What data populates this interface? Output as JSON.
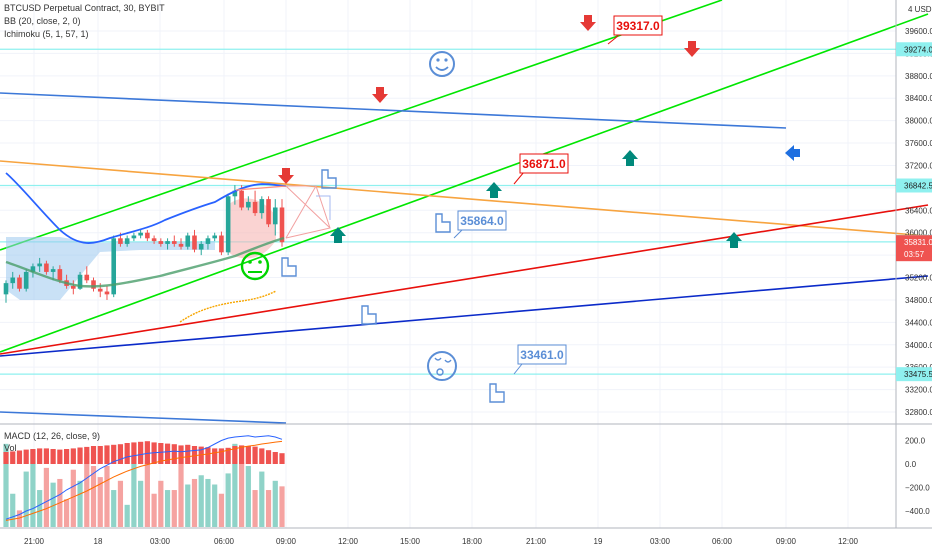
{
  "header": {
    "symbol": "BTCUSD Perpetual Contract, 30, BYBIT",
    "ind1": "BB (20, close, 2, 0)",
    "ind2": "Ichimoku (5, 1, 57, 1)"
  },
  "macd_header": {
    "label": "MACD (12, 26, close, 9)",
    "vol": "Vol"
  },
  "currency": "4 USD",
  "colors": {
    "up": "#26a69a",
    "down": "#ef5350",
    "green_line": "#00e600",
    "orange_line": "#f7a440",
    "red_line": "#e8100c",
    "blue_line": "#0b2ac9",
    "steel_line": "#3c78d8",
    "cyan_level": "#8ff0ef",
    "callout_red": "#e8100c",
    "callout_blue": "#5b8ed6"
  },
  "chart_data": {
    "type": "candlestick",
    "x_ticks": [
      "21:00",
      "18",
      "03:00",
      "06:00",
      "09:00",
      "12:00",
      "15:00",
      "18:00",
      "21:00",
      "19",
      "03:00",
      "06:00",
      "09:00",
      "12:00"
    ],
    "y_ticks": [
      32800,
      33200,
      33600,
      34000,
      34400,
      34800,
      35200,
      35600,
      36000,
      36400,
      36800,
      37200,
      37600,
      38000,
      38400,
      38800,
      39200,
      39600
    ],
    "macd_ticks": [
      200,
      0,
      -200,
      -400
    ],
    "macd_tick_labels": [
      "200.0",
      "0.0",
      "−200.0",
      "−400.0"
    ],
    "price_levels": [
      {
        "value": 39274.0,
        "label": "39274.0"
      },
      {
        "value": 36842.5,
        "label": "36842.5"
      },
      {
        "value": 35836.0,
        "label": "35836.0"
      },
      {
        "value": 33475.5,
        "label": "33475.5"
      }
    ],
    "current_price": {
      "value": 35831.0,
      "label": "35831.0",
      "countdown": "03:57"
    },
    "callouts": [
      {
        "label": "39317.0",
        "style": "red"
      },
      {
        "label": "36871.0",
        "style": "red"
      },
      {
        "label": "35864.0",
        "style": "blue"
      },
      {
        "label": "33461.0",
        "style": "blue"
      }
    ],
    "candles": [
      [
        34900,
        35150,
        34750,
        35100
      ],
      [
        35100,
        35300,
        35000,
        35200
      ],
      [
        35200,
        35250,
        34950,
        35000
      ],
      [
        35000,
        35350,
        34950,
        35300
      ],
      [
        35300,
        35450,
        35200,
        35400
      ],
      [
        35400,
        35550,
        35300,
        35450
      ],
      [
        35450,
        35500,
        35250,
        35300
      ],
      [
        35300,
        35400,
        35150,
        35350
      ],
      [
        35350,
        35420,
        35100,
        35150
      ],
      [
        35150,
        35250,
        35000,
        35050
      ],
      [
        35050,
        35150,
        34900,
        35000
      ],
      [
        35000,
        35300,
        34980,
        35250
      ],
      [
        35250,
        35400,
        35100,
        35150
      ],
      [
        35150,
        35200,
        34950,
        35000
      ],
      [
        35000,
        35100,
        34850,
        34950
      ],
      [
        34950,
        35050,
        34800,
        34900
      ],
      [
        34900,
        35950,
        34850,
        35900
      ],
      [
        35900,
        36000,
        35750,
        35800
      ],
      [
        35800,
        35950,
        35750,
        35900
      ],
      [
        35900,
        36000,
        35850,
        35950
      ],
      [
        35950,
        36050,
        35900,
        36000
      ],
      [
        36000,
        36050,
        35850,
        35900
      ],
      [
        35900,
        35950,
        35800,
        35850
      ],
      [
        35850,
        35900,
        35750,
        35800
      ],
      [
        35800,
        35900,
        35700,
        35850
      ],
      [
        35850,
        35950,
        35750,
        35800
      ],
      [
        35800,
        35900,
        35700,
        35750
      ],
      [
        35750,
        36000,
        35700,
        35950
      ],
      [
        35950,
        36050,
        35650,
        35700
      ],
      [
        35700,
        35850,
        35600,
        35800
      ],
      [
        35800,
        35950,
        35700,
        35900
      ],
      [
        35900,
        36000,
        35850,
        35950
      ],
      [
        35950,
        36020,
        35600,
        35650
      ],
      [
        35650,
        36700,
        35600,
        36650
      ],
      [
        36650,
        36850,
        36500,
        36750
      ],
      [
        36750,
        36850,
        36400,
        36450
      ],
      [
        36450,
        36650,
        36400,
        36550
      ],
      [
        36550,
        36750,
        36300,
        36350
      ],
      [
        36350,
        36650,
        36250,
        36600
      ],
      [
        36600,
        36650,
        36100,
        36150
      ],
      [
        36150,
        36600,
        35950,
        36450
      ],
      [
        36450,
        36600,
        35750,
        35830
      ]
    ],
    "volumes": [
      450,
      180,
      90,
      300,
      420,
      200,
      320,
      240,
      260,
      150,
      310,
      250,
      400,
      330,
      270,
      330,
      200,
      250,
      120,
      380,
      250,
      360,
      180,
      250,
      200,
      200,
      400,
      230,
      260,
      280,
      260,
      230,
      180,
      290,
      450,
      350,
      330,
      200,
      300,
      200,
      250,
      220
    ],
    "macd_hist": [
      40,
      42,
      45,
      48,
      50,
      52,
      52,
      50,
      48,
      50,
      52,
      55,
      57,
      60,
      60,
      62,
      64,
      66,
      70,
      72,
      74,
      76,
      72,
      70,
      68,
      66,
      62,
      64,
      60,
      58,
      56,
      52,
      52,
      54,
      60,
      62,
      60,
      58,
      52,
      46,
      40,
      36
    ],
    "macd_line": [
      -470,
      -450,
      -430,
      -400,
      -380,
      -350,
      -320,
      -290,
      -260,
      -220,
      -190,
      -160,
      -120,
      -80,
      -40,
      -10,
      20,
      40,
      60,
      70,
      80,
      90,
      95,
      100,
      105,
      110,
      105,
      110,
      115,
      120,
      140,
      170,
      200,
      220,
      230,
      235,
      240,
      230,
      235,
      240,
      230,
      210
    ],
    "signal_line": [
      -480,
      -470,
      -460,
      -440,
      -420,
      -400,
      -380,
      -355,
      -330,
      -305,
      -280,
      -255,
      -230,
      -200,
      -170,
      -140,
      -110,
      -85,
      -60,
      -40,
      -20,
      -5,
      10,
      25,
      35,
      45,
      55,
      62,
      70,
      78,
      85,
      95,
      105,
      118,
      130,
      142,
      152,
      160,
      170,
      178,
      186,
      192
    ]
  }
}
